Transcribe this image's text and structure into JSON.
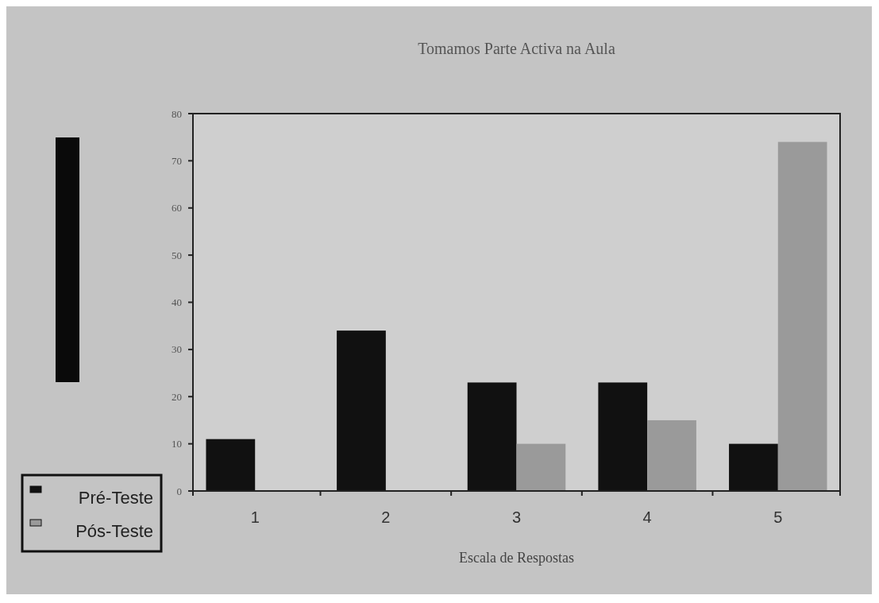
{
  "chart_data": {
    "type": "bar",
    "title": "Tomamos Parte Activa na Aula",
    "xlabel": "Escala de Respostas",
    "categories": [
      "1",
      "2",
      "3",
      "4",
      "5"
    ],
    "series": [
      {
        "name": "Pré-Teste",
        "color": "#111111",
        "values": [
          11,
          34,
          23,
          23,
          10
        ]
      },
      {
        "name": "Pós-Teste",
        "color": "#9a9a9a",
        "values": [
          0,
          0,
          10,
          15,
          74
        ]
      }
    ],
    "ylim": [
      0,
      80
    ],
    "yticks": [
      0,
      10,
      20,
      30,
      40,
      50,
      60,
      70,
      80
    ],
    "grid": false,
    "legend": "bottom left"
  }
}
